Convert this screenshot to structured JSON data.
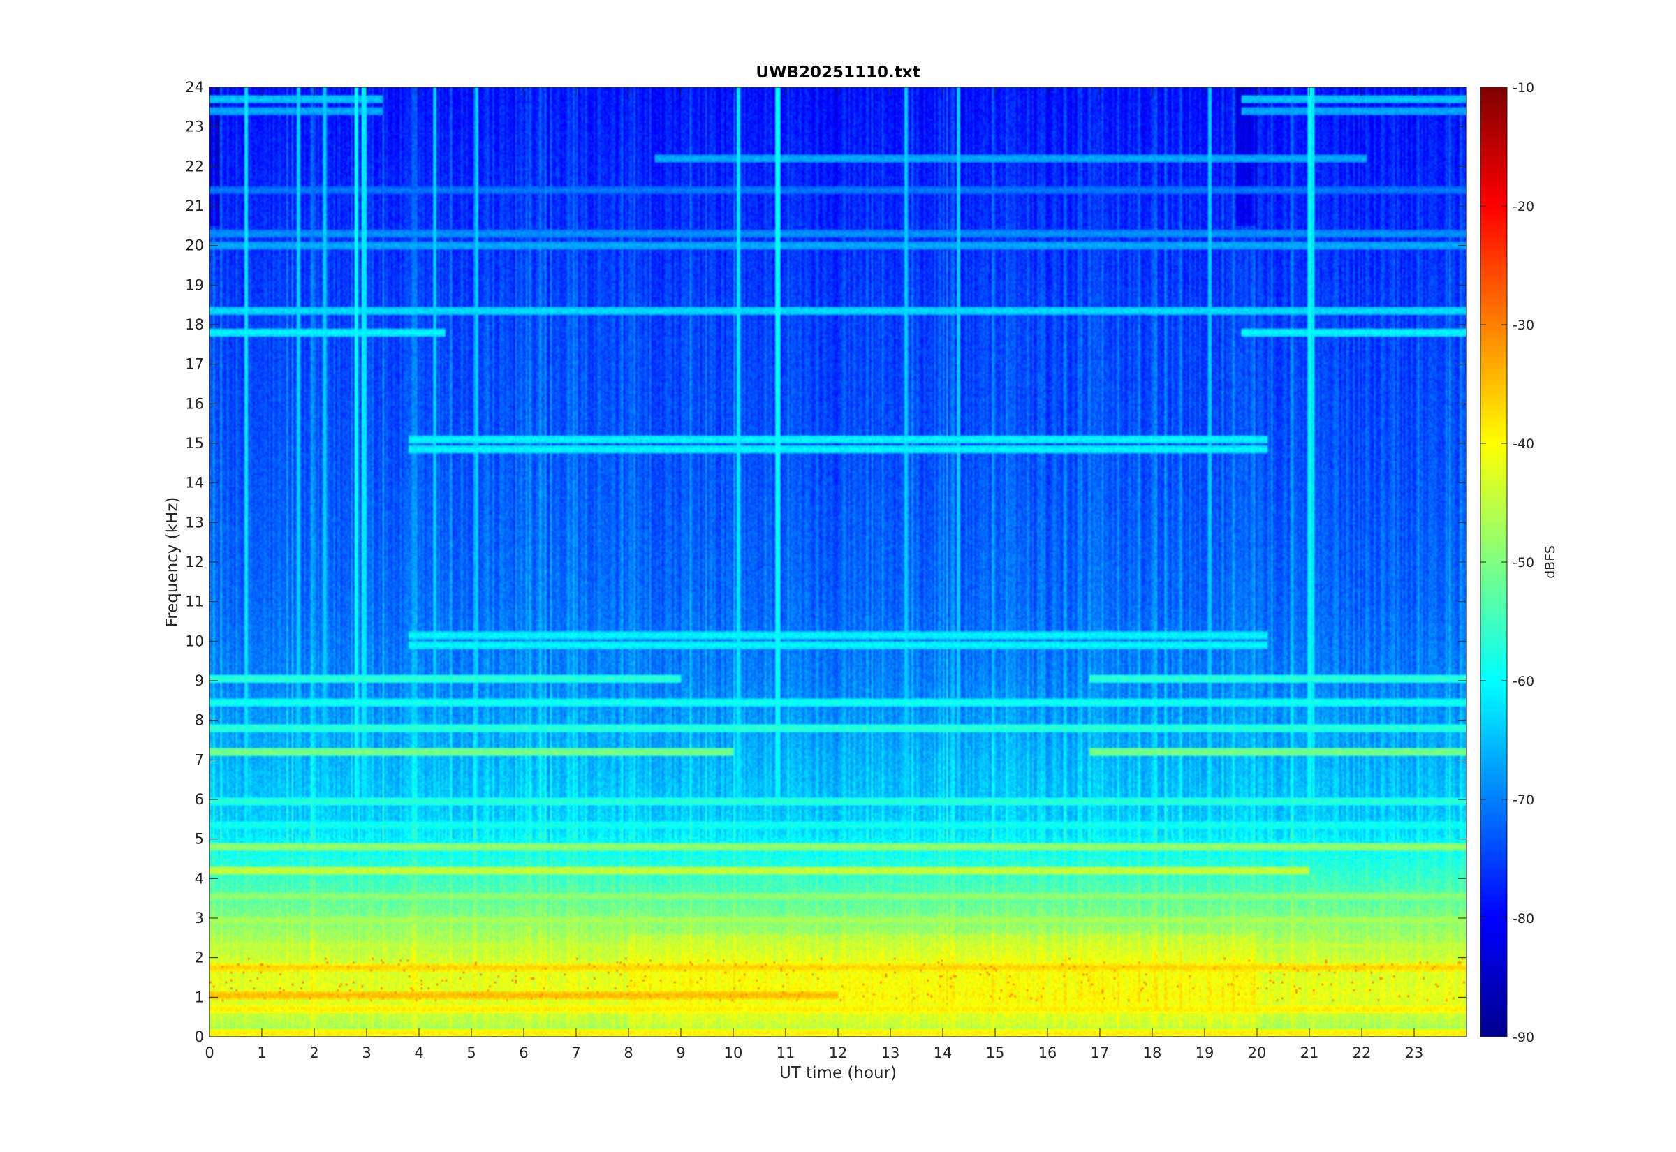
{
  "chart_data": {
    "type": "heatmap",
    "title": "UWB20251110.txt",
    "xlabel": "UT time (hour)",
    "ylabel": "Frequency (kHz)",
    "xlim": [
      0,
      24
    ],
    "ylim": [
      0,
      24
    ],
    "x_ticks": [
      0,
      1,
      2,
      3,
      4,
      5,
      6,
      7,
      8,
      9,
      10,
      11,
      12,
      13,
      14,
      15,
      16,
      17,
      18,
      19,
      20,
      21,
      22,
      23
    ],
    "y_ticks": [
      0,
      1,
      2,
      3,
      4,
      5,
      6,
      7,
      8,
      9,
      10,
      11,
      12,
      13,
      14,
      15,
      16,
      17,
      18,
      19,
      20,
      21,
      22,
      23,
      24
    ],
    "colorbar": {
      "label": "dBFS",
      "range": [
        -90,
        -10
      ],
      "ticks": [
        -10,
        -20,
        -30,
        -40,
        -50,
        -60,
        -70,
        -80,
        -90
      ],
      "colormap": "jet"
    },
    "background_profile": {
      "frequency_khz": [
        0,
        0.3,
        1,
        1.8,
        2.5,
        3.5,
        4.5,
        5.5,
        7,
        9,
        11,
        13,
        15,
        18,
        21,
        24
      ],
      "level_dbfs": [
        -52,
        -46,
        -42,
        -43,
        -47,
        -53,
        -58,
        -64,
        -66,
        -70,
        -72,
        -73,
        -74,
        -75,
        -77,
        -79
      ]
    },
    "horizontal_lines": [
      {
        "frequency_khz": 0.1,
        "level_dbfs": -38,
        "x_range": [
          0,
          24
        ]
      },
      {
        "frequency_khz": 0.7,
        "level_dbfs": -38,
        "x_range": [
          0,
          24
        ]
      },
      {
        "frequency_khz": 1.05,
        "level_dbfs": -34,
        "x_range": [
          0,
          12
        ]
      },
      {
        "frequency_khz": 1.75,
        "level_dbfs": -36,
        "x_range": [
          0,
          24
        ]
      },
      {
        "frequency_khz": 2.3,
        "level_dbfs": -44,
        "x_range": [
          0,
          24
        ]
      },
      {
        "frequency_khz": 2.95,
        "level_dbfs": -46,
        "x_range": [
          0,
          24
        ]
      },
      {
        "frequency_khz": 3.55,
        "level_dbfs": -48,
        "x_range": [
          0,
          24
        ]
      },
      {
        "frequency_khz": 4.2,
        "level_dbfs": -44,
        "x_range": [
          0,
          21
        ]
      },
      {
        "frequency_khz": 4.8,
        "level_dbfs": -48,
        "x_range": [
          0,
          24
        ]
      },
      {
        "frequency_khz": 5.35,
        "level_dbfs": -58,
        "x_range": [
          0,
          24
        ]
      },
      {
        "frequency_khz": 5.95,
        "level_dbfs": -56,
        "x_range": [
          0,
          24
        ]
      },
      {
        "frequency_khz": 7.2,
        "level_dbfs": -50,
        "x_range": [
          0,
          10
        ]
      },
      {
        "frequency_khz": 7.2,
        "level_dbfs": -50,
        "x_range": [
          16.8,
          24
        ]
      },
      {
        "frequency_khz": 7.8,
        "level_dbfs": -56,
        "x_range": [
          0,
          24
        ]
      },
      {
        "frequency_khz": 8.45,
        "level_dbfs": -58,
        "x_range": [
          0,
          24
        ]
      },
      {
        "frequency_khz": 9.05,
        "level_dbfs": -56,
        "x_range": [
          0,
          9
        ]
      },
      {
        "frequency_khz": 9.05,
        "level_dbfs": -56,
        "x_range": [
          16.8,
          24
        ]
      },
      {
        "frequency_khz": 9.9,
        "level_dbfs": -60,
        "x_range": [
          3.8,
          20.2
        ]
      },
      {
        "frequency_khz": 10.15,
        "level_dbfs": -60,
        "x_range": [
          3.8,
          20.2
        ]
      },
      {
        "frequency_khz": 14.85,
        "level_dbfs": -60,
        "x_range": [
          3.8,
          20.2
        ]
      },
      {
        "frequency_khz": 15.1,
        "level_dbfs": -60,
        "x_range": [
          3.8,
          20.2
        ]
      },
      {
        "frequency_khz": 17.8,
        "level_dbfs": -60,
        "x_range": [
          0,
          4.5
        ]
      },
      {
        "frequency_khz": 17.8,
        "level_dbfs": -60,
        "x_range": [
          19.7,
          24
        ]
      },
      {
        "frequency_khz": 18.35,
        "level_dbfs": -62,
        "x_range": [
          0,
          24
        ]
      },
      {
        "frequency_khz": 20.0,
        "level_dbfs": -66,
        "x_range": [
          0,
          24
        ]
      },
      {
        "frequency_khz": 20.3,
        "level_dbfs": -68,
        "x_range": [
          0,
          24
        ]
      },
      {
        "frequency_khz": 21.4,
        "level_dbfs": -70,
        "x_range": [
          0,
          24
        ]
      },
      {
        "frequency_khz": 22.2,
        "level_dbfs": -66,
        "x_range": [
          8.5,
          22.1
        ]
      },
      {
        "frequency_khz": 23.4,
        "level_dbfs": -66,
        "x_range": [
          0,
          3.3
        ]
      },
      {
        "frequency_khz": 23.4,
        "level_dbfs": -66,
        "x_range": [
          19.7,
          24
        ]
      },
      {
        "frequency_khz": 23.7,
        "level_dbfs": -64,
        "x_range": [
          0,
          3.3
        ]
      },
      {
        "frequency_khz": 23.7,
        "level_dbfs": -64,
        "x_range": [
          19.7,
          24
        ]
      }
    ],
    "vertical_lines": [
      {
        "time_h": 0.7,
        "level_dbfs": -62
      },
      {
        "time_h": 1.7,
        "level_dbfs": -64
      },
      {
        "time_h": 2.2,
        "level_dbfs": -64
      },
      {
        "time_h": 2.8,
        "level_dbfs": -60
      },
      {
        "time_h": 2.95,
        "level_dbfs": -62
      },
      {
        "time_h": 4.3,
        "level_dbfs": -64
      },
      {
        "time_h": 5.1,
        "level_dbfs": -64
      },
      {
        "time_h": 10.1,
        "level_dbfs": -62
      },
      {
        "time_h": 10.85,
        "level_dbfs": -60
      },
      {
        "time_h": 13.3,
        "level_dbfs": -64
      },
      {
        "time_h": 14.3,
        "level_dbfs": -64
      },
      {
        "time_h": 19.1,
        "level_dbfs": -64
      },
      {
        "time_h": 21.0,
        "level_dbfs": -60
      },
      {
        "time_h": 21.05,
        "level_dbfs": -62
      }
    ]
  }
}
